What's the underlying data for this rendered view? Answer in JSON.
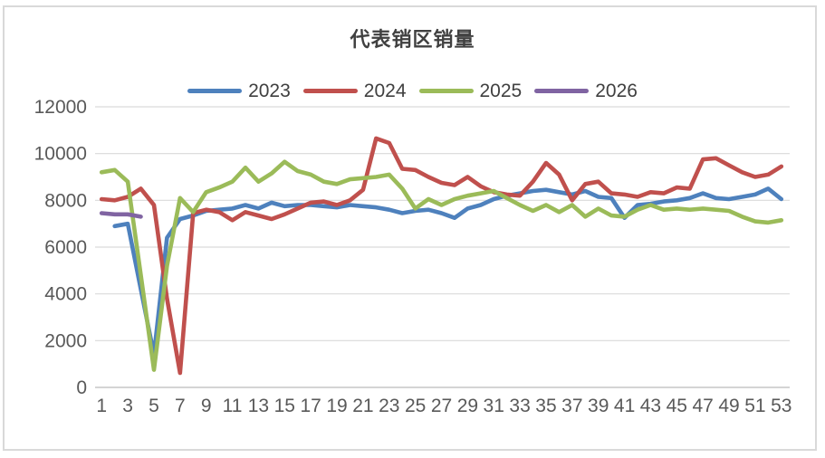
{
  "frame": {
    "background": "#ffffff",
    "border_color": "#d9d9d9"
  },
  "chart_data": {
    "type": "line",
    "title": "代表销区销量",
    "xlabel": "",
    "ylabel": "",
    "x": [
      1,
      2,
      3,
      4,
      5,
      6,
      7,
      8,
      9,
      10,
      11,
      12,
      13,
      14,
      15,
      16,
      17,
      18,
      19,
      20,
      21,
      22,
      23,
      24,
      25,
      26,
      27,
      28,
      29,
      30,
      31,
      32,
      33,
      34,
      35,
      36,
      37,
      38,
      39,
      40,
      41,
      42,
      43,
      44,
      45,
      46,
      47,
      48,
      49,
      50,
      51,
      52,
      53
    ],
    "x_tick_labels": [
      1,
      3,
      5,
      7,
      9,
      11,
      13,
      15,
      17,
      19,
      21,
      23,
      25,
      27,
      29,
      31,
      33,
      35,
      37,
      39,
      41,
      43,
      45,
      47,
      49,
      51,
      53
    ],
    "ylim": [
      0,
      12000
    ],
    "y_ticks": [
      0,
      2000,
      4000,
      6000,
      8000,
      10000,
      12000
    ],
    "grid": "horizontal",
    "legend_position": "top-center",
    "series": [
      {
        "name": "2023",
        "color": "#4e81bd",
        "values": [
          null,
          6900,
          7000,
          4200,
          1400,
          6400,
          7200,
          7350,
          7550,
          7600,
          7650,
          7800,
          7650,
          7900,
          7750,
          7800,
          7800,
          7750,
          7700,
          7800,
          7750,
          7700,
          7600,
          7450,
          7550,
          7600,
          7450,
          7250,
          7650,
          7800,
          8050,
          8200,
          8300,
          8400,
          8450,
          8350,
          8250,
          8400,
          8150,
          8100,
          7250,
          7800,
          7850,
          7950,
          8000,
          8100,
          8300,
          8100,
          8050,
          8150,
          8250,
          8500,
          8050
        ]
      },
      {
        "name": "2024",
        "color": "#c0504d",
        "values": [
          8050,
          8000,
          8150,
          8500,
          7800,
          3800,
          620,
          7450,
          7600,
          7500,
          7150,
          7500,
          7350,
          7200,
          7400,
          7650,
          7900,
          7950,
          7800,
          8000,
          8450,
          10650,
          10450,
          9350,
          9300,
          9000,
          8750,
          8650,
          9000,
          8600,
          8350,
          8250,
          8200,
          8800,
          9600,
          9100,
          8000,
          8700,
          8800,
          8300,
          8250,
          8150,
          8350,
          8300,
          8550,
          8500,
          9750,
          9800,
          9500,
          9200,
          9000,
          9100,
          9450
        ]
      },
      {
        "name": "2025",
        "color": "#9bbb59",
        "values": [
          9200,
          9300,
          8800,
          4800,
          750,
          5200,
          8100,
          7500,
          8350,
          8550,
          8800,
          9400,
          8800,
          9150,
          9650,
          9250,
          9100,
          8800,
          8700,
          8900,
          8950,
          9000,
          9100,
          8500,
          7650,
          8050,
          7800,
          8050,
          8200,
          8300,
          8400,
          8100,
          7800,
          7550,
          7800,
          7500,
          7800,
          7300,
          7650,
          7350,
          7300,
          7600,
          7800,
          7600,
          7650,
          7600,
          7650,
          7600,
          7550,
          7300,
          7100,
          7050,
          7150
        ]
      },
      {
        "name": "2026",
        "color": "#8064a2",
        "values": [
          7450,
          7400,
          7400,
          7300,
          null,
          null,
          null,
          null,
          null,
          null,
          null,
          null,
          null,
          null,
          null,
          null,
          null,
          null,
          null,
          null,
          null,
          null,
          null,
          null,
          null,
          null,
          null,
          null,
          null,
          null,
          null,
          null,
          null,
          null,
          null,
          null,
          null,
          null,
          null,
          null,
          null,
          null,
          null,
          null,
          null,
          null,
          null,
          null,
          null,
          null,
          null,
          null,
          null
        ]
      }
    ],
    "theme": {
      "grid_color": "#d9d9d9",
      "axis_line_color": "#c6c6c6",
      "axis_text_color": "#595959",
      "title_color": "#404040",
      "legend_text_color": "#404040"
    }
  }
}
